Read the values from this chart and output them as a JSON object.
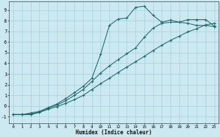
{
  "bg_color": "#cce8f0",
  "grid_color": "#a8d4de",
  "line_color": "#1e6b6b",
  "xlabel": "Humidex (Indice chaleur)",
  "xlim": [
    -0.5,
    23.5
  ],
  "ylim": [
    -1.6,
    9.8
  ],
  "xticks": [
    0,
    1,
    2,
    3,
    4,
    5,
    6,
    7,
    8,
    9,
    10,
    11,
    12,
    13,
    14,
    15,
    16,
    17,
    18,
    19,
    20,
    21,
    22,
    23
  ],
  "yticks": [
    -1,
    0,
    1,
    2,
    3,
    4,
    5,
    6,
    7,
    8,
    9
  ],
  "line1_x": [
    0,
    1,
    2,
    3,
    4,
    5,
    6,
    7,
    8,
    9,
    10,
    11,
    12,
    13,
    14,
    15,
    16,
    17,
    18,
    19,
    20,
    21,
    22,
    23
  ],
  "line1_y": [
    -0.8,
    -0.8,
    -0.8,
    -0.6,
    -0.3,
    -0.05,
    0.25,
    0.6,
    1.0,
    1.55,
    2.1,
    2.6,
    3.15,
    3.65,
    4.15,
    4.65,
    5.2,
    5.7,
    6.15,
    6.55,
    6.95,
    7.25,
    7.6,
    7.75
  ],
  "line2_x": [
    0,
    1,
    2,
    3,
    4,
    5,
    6,
    7,
    8,
    9,
    10,
    11,
    12,
    13,
    14,
    15,
    16,
    17,
    18,
    19,
    20,
    21,
    22,
    23
  ],
  "line2_y": [
    -0.8,
    -0.8,
    -0.75,
    -0.55,
    -0.2,
    0.1,
    0.5,
    1.0,
    1.55,
    2.3,
    3.1,
    3.75,
    4.35,
    4.9,
    5.45,
    6.45,
    7.3,
    7.75,
    7.85,
    7.85,
    7.75,
    7.55,
    7.55,
    7.45
  ],
  "line3_x": [
    0,
    1,
    2,
    3,
    4,
    5,
    6,
    7,
    8,
    9,
    10,
    11,
    12,
    13,
    14,
    15,
    16,
    17,
    18,
    19,
    20,
    21,
    22,
    23
  ],
  "line3_y": [
    -0.8,
    -0.8,
    -0.65,
    -0.5,
    -0.15,
    0.2,
    0.7,
    1.25,
    1.85,
    2.6,
    4.85,
    7.55,
    8.15,
    8.25,
    9.25,
    9.35,
    8.5,
    7.85,
    8.05,
    7.85,
    8.1,
    8.1,
    8.1,
    7.5
  ]
}
